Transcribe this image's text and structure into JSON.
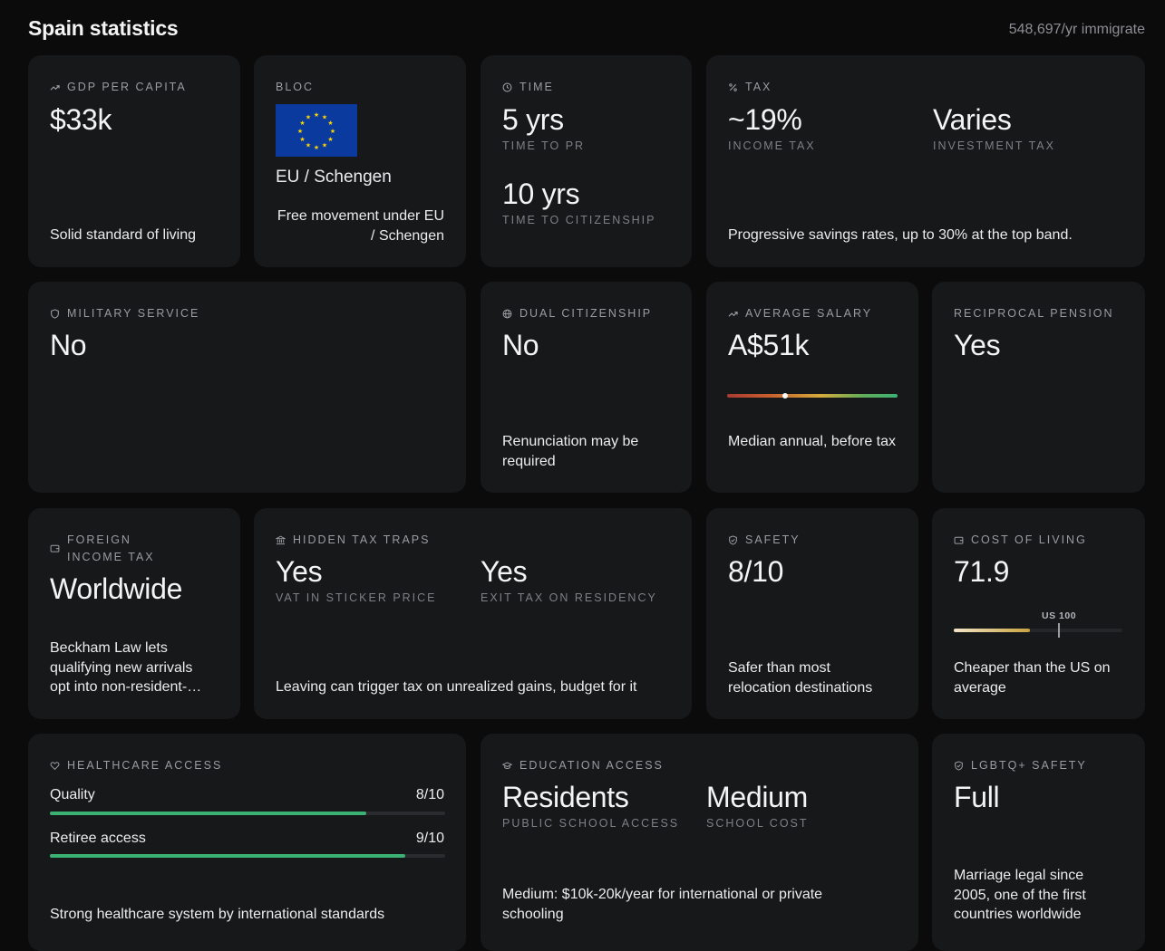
{
  "header": {
    "title": "Spain statistics",
    "immigration": "548,697/yr immigrate"
  },
  "gdp": {
    "label": "GDP PER CAPITA",
    "value": "$33k",
    "note": "Solid standard of living"
  },
  "bloc": {
    "label": "BLOC",
    "name": "EU / Schengen",
    "note_line1": "Free movement under EU",
    "note_line2": "/ Schengen"
  },
  "time": {
    "label": "TIME",
    "pr_value": "5 yrs",
    "pr_sub": "TIME TO PR",
    "cit_value": "10 yrs",
    "cit_sub": "TIME TO CITIZENSHIP"
  },
  "tax": {
    "label": "TAX",
    "income_value": "~19%",
    "income_sub": "INCOME TAX",
    "investment_value": "Varies",
    "investment_sub": "INVESTMENT TAX",
    "note": "Progressive savings rates, up to 30% at the top band."
  },
  "military": {
    "label": "MILITARY SERVICE",
    "value": "No"
  },
  "dual": {
    "label": "DUAL CITIZENSHIP",
    "value": "No",
    "note": "Renunciation may be required"
  },
  "salary": {
    "label": "AVERAGE SALARY",
    "value": "A$51k",
    "note": "Median annual, before tax",
    "position": 0.34
  },
  "pension": {
    "label": "RECIPROCAL PENSION",
    "value": "Yes"
  },
  "foreign_income": {
    "label": "FOREIGN INCOME TAX",
    "value": "Worldwide",
    "note_line1": "Beckham Law lets",
    "note_line2": "qualifying new arrivals",
    "note_line3": "opt into non-resident-…"
  },
  "hidden_tax": {
    "label": "HIDDEN TAX TRAPS",
    "vat_value": "Yes",
    "vat_sub": "VAT IN STICKER PRICE",
    "exit_value": "Yes",
    "exit_sub": "EXIT TAX ON RESIDENCY",
    "note": "Leaving can trigger tax on unrealized gains, budget for it"
  },
  "safety": {
    "label": "SAFETY",
    "value": "8/10",
    "note": "Safer than most relocation destinations"
  },
  "cost": {
    "label": "COST OF LIVING",
    "value": "71.9",
    "marker_label": "US 100",
    "note": "Cheaper than the US on average",
    "fill_fraction": 0.449,
    "marker_fraction": 0.624
  },
  "healthcare": {
    "label": "HEALTHCARE ACCESS",
    "rows": [
      {
        "name": "Quality",
        "score": "8/10",
        "fraction": 0.8
      },
      {
        "name": "Retiree access",
        "score": "9/10",
        "fraction": 0.9
      }
    ],
    "note": "Strong healthcare system by international standards"
  },
  "education": {
    "label": "EDUCATION ACCESS",
    "public_value": "Residents",
    "public_sub": "PUBLIC SCHOOL ACCESS",
    "cost_value": "Medium",
    "cost_sub": "SCHOOL COST",
    "note": "Medium: $10k-20k/year for international or private schooling"
  },
  "lgbtq": {
    "label": "LGBTQ+ SAFETY",
    "value": "Full",
    "note": "Marriage legal since 2005, one of the first countries worldwide"
  },
  "colors": {
    "accent_green": "#3bb273",
    "background": "#0b0b0c",
    "card": "#17181a",
    "eu_blue": "#0a3a9e",
    "eu_star": "#ffd500"
  },
  "icons": [
    "trend-up-icon",
    "clock-icon",
    "percent-icon",
    "shield-icon",
    "globe-icon",
    "wallet-icon",
    "bank-icon",
    "shield-check-icon",
    "heart-icon",
    "graduation-cap-icon"
  ]
}
